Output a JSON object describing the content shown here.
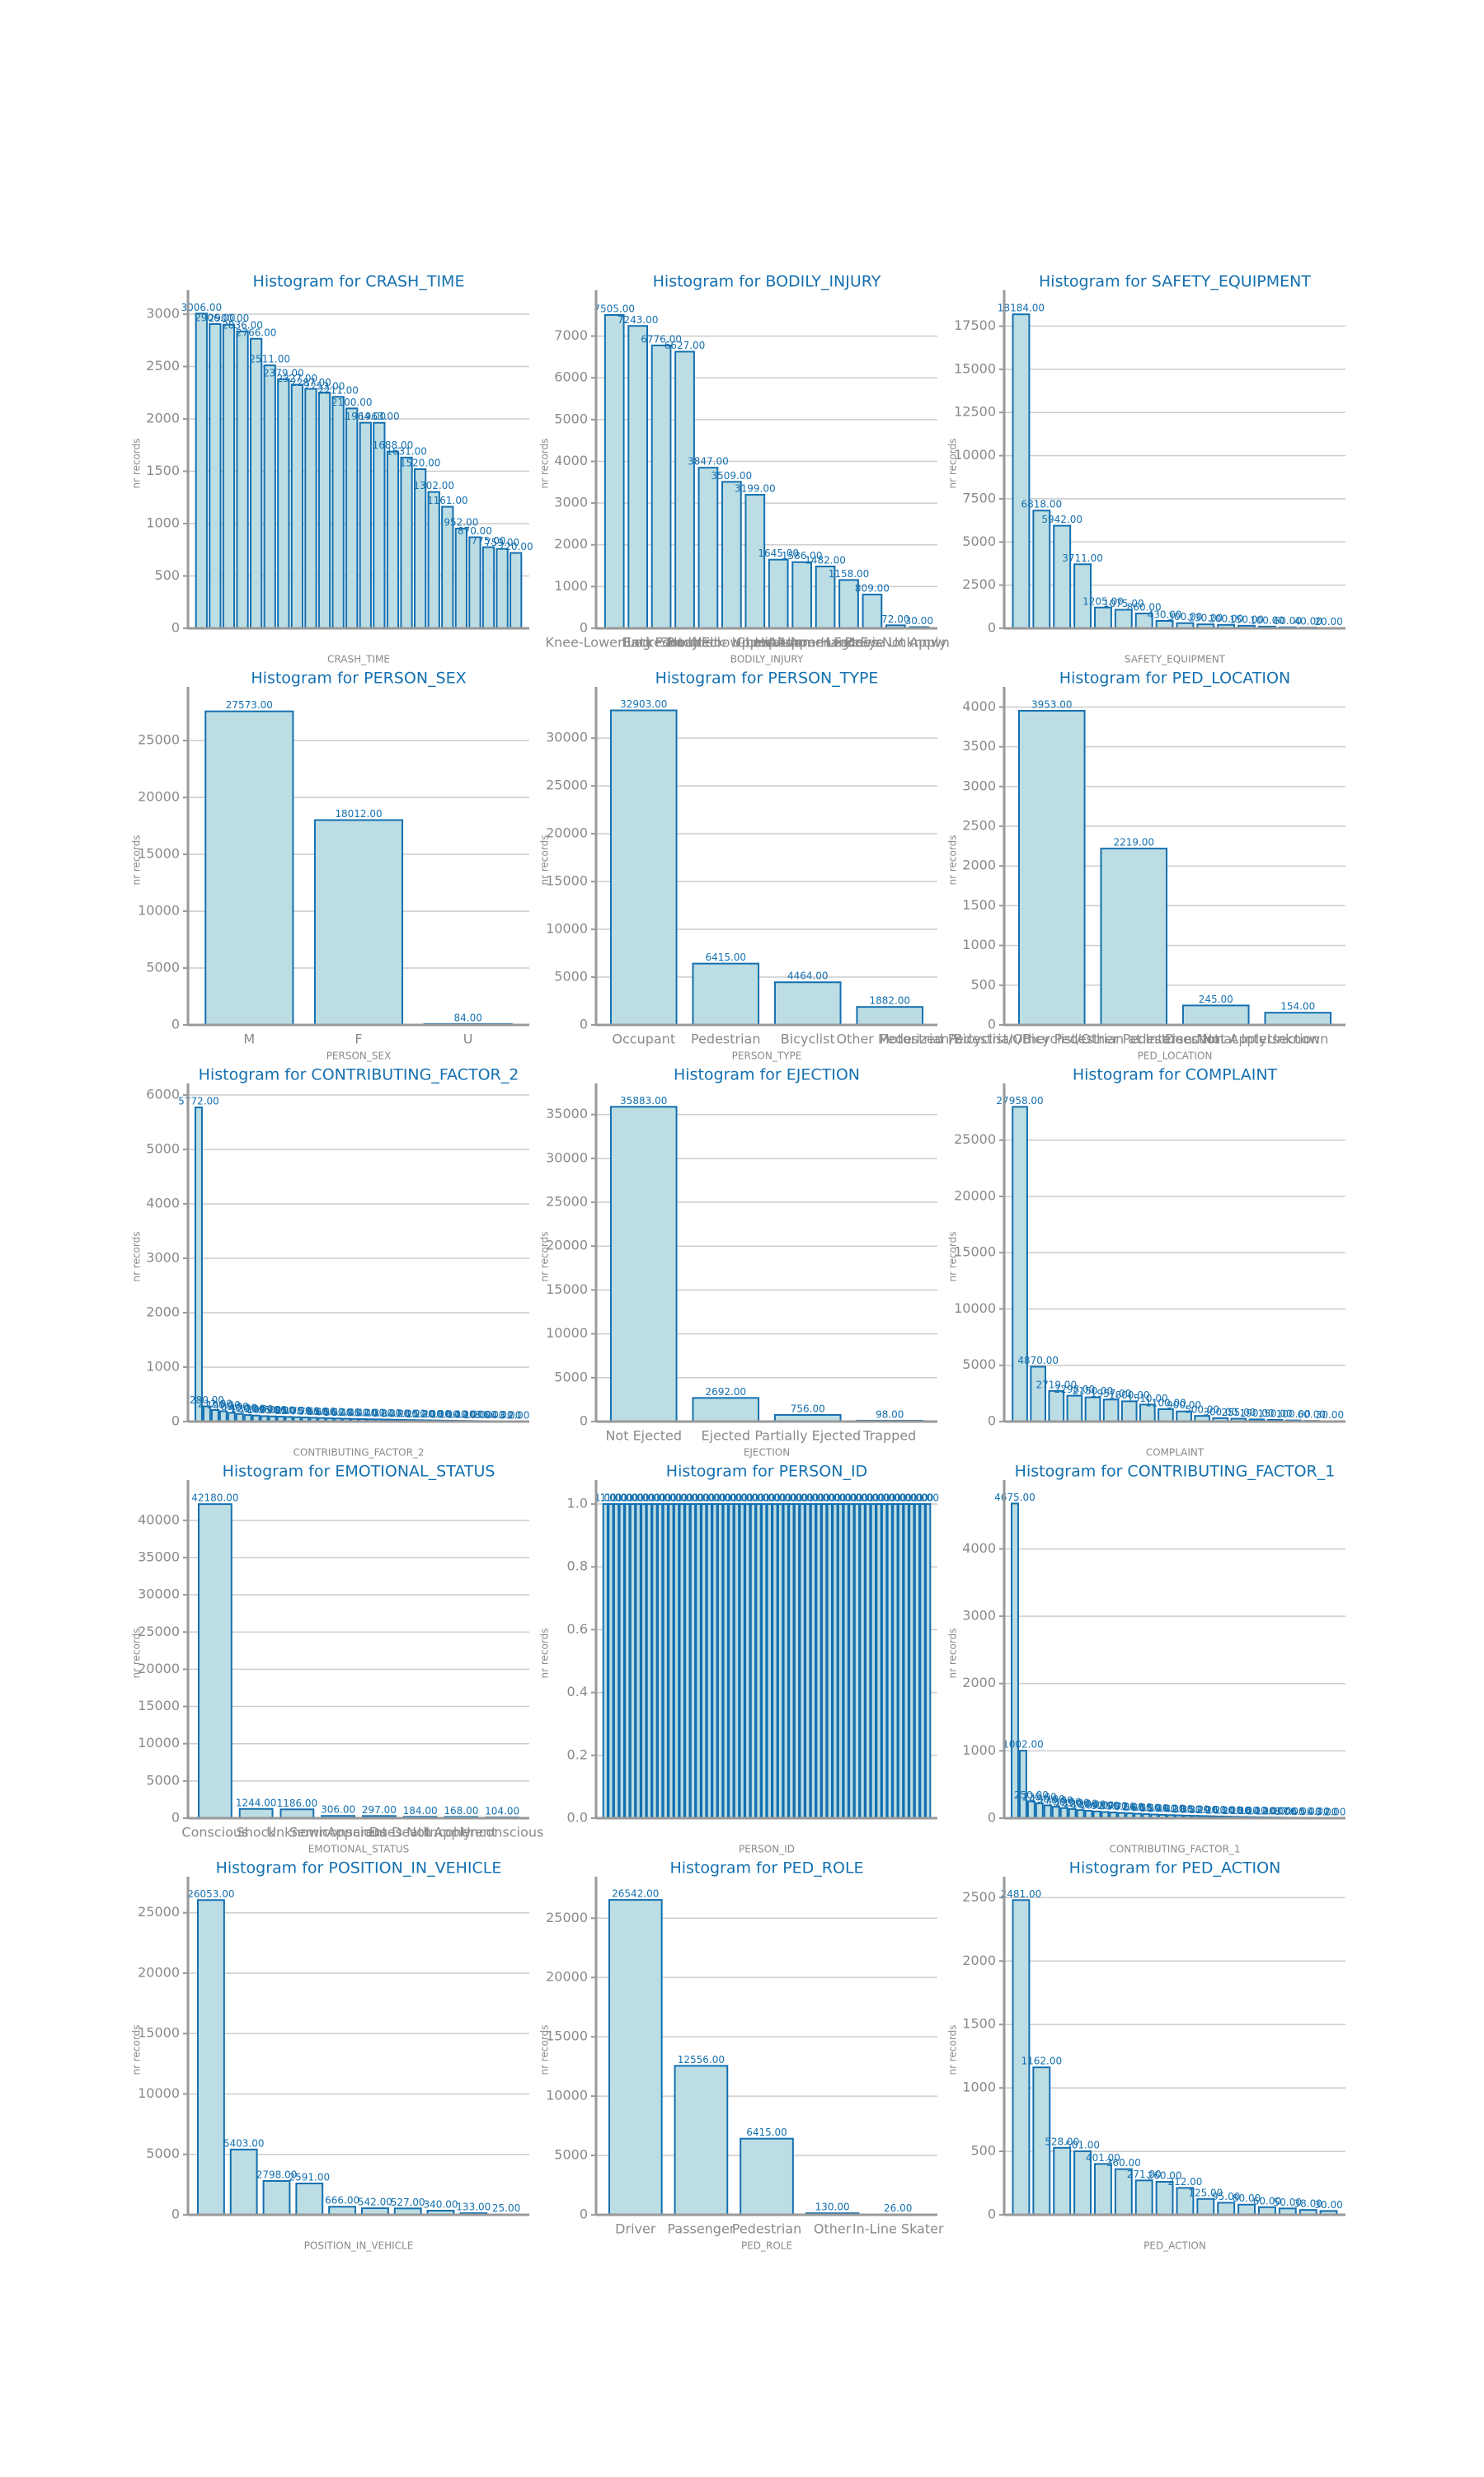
{
  "chart_data": [
    {
      "type": "bar",
      "title": "Histogram for CRASH_TIME",
      "xlabel": "CRASH_TIME",
      "ylabel": "nr records",
      "color": "#bcdde3",
      "edge_color": "#1470b0",
      "grid": true,
      "categories": [
        null,
        null,
        null,
        null,
        null,
        null,
        null,
        null,
        null,
        null,
        null,
        null,
        null,
        null,
        null,
        null,
        null,
        null,
        null,
        null,
        null,
        null,
        null,
        null
      ],
      "values": [
        3006,
        2906,
        2900,
        2836,
        2766,
        2511,
        2379,
        2327,
        2287,
        2253,
        2211,
        2100,
        1964,
        1963,
        1688,
        1631,
        1520,
        1302,
        1161,
        952,
        870,
        775,
        759,
        720
      ],
      "value_labels": [
        "3006.00",
        "2906.00",
        "2900.00",
        "2836.00",
        "2766.00",
        "2511.00",
        "2379.00",
        "2327.00",
        "2287.00",
        "2253.00",
        "2211.00",
        "2100.00",
        "1964.00",
        "1963.00",
        "1688.00",
        "1631.00",
        "1520.00",
        "1302.00",
        "1161.00",
        "952.00",
        "870.00",
        "775.00",
        "759.00",
        "720.00"
      ],
      "ylim": [
        0,
        3150
      ],
      "yticks": [
        0,
        500,
        1000,
        1500,
        2000,
        2500,
        3000
      ]
    },
    {
      "type": "bar",
      "title": "Histogram for BODILY_INJURY",
      "xlabel": "BODILY_INJURY",
      "ylabel": "nr records",
      "color": "#bcdde3",
      "edge_color": "#1470b0",
      "grid": true,
      "categories": [
        "Knee-Lower Leg Foot",
        "Back",
        "Entire Body",
        "Head",
        "Neck",
        "Shoulder - Upper Arm",
        "Chest",
        "Elbow-Lower-Arm-Hand",
        "Hip-Upper Leg",
        "Abdomen - Pelvis",
        "Face",
        "Eye",
        "Does Not Apply",
        "Unknown"
      ],
      "values": [
        7505,
        7243,
        6776,
        6627,
        3847,
        3509,
        3199,
        1645,
        1586,
        1482,
        1158,
        809,
        72,
        30
      ],
      "value_labels": [
        "7505.00",
        "7243.00",
        "6776.00",
        "6627.00",
        "3847.00",
        "3509.00",
        "3199.00",
        "1645.00",
        "1586.00",
        "1482.00",
        "1158.00",
        "809.00",
        "72.00",
        "30.00"
      ],
      "ylim": [
        0,
        7900
      ],
      "yticks": [
        0,
        1000,
        2000,
        3000,
        4000,
        5000,
        6000,
        7000
      ]
    },
    {
      "type": "bar",
      "title": "Histogram for SAFETY_EQUIPMENT",
      "xlabel": "SAFETY_EQUIPMENT",
      "ylabel": "nr records",
      "color": "#bcdde3",
      "edge_color": "#1470b0",
      "grid": true,
      "categories": [
        null,
        null,
        null,
        null,
        null,
        null,
        null,
        null,
        null,
        null,
        null,
        null,
        null,
        null,
        null,
        null
      ],
      "values": [
        18184,
        6818,
        5942,
        3711,
        1205,
        1075,
        860,
        430,
        300,
        230,
        200,
        150,
        100,
        60,
        40,
        20
      ],
      "value_labels": [
        "18184.00",
        "6818.00",
        "5942.00",
        "3711.00",
        "1205.00",
        "1075.00",
        "860.00",
        "430.00",
        "300.00",
        "230.00",
        "200.00",
        "150.00",
        "100.00",
        "60.00",
        "40.00",
        "20.00"
      ],
      "ylim": [
        0,
        19100
      ],
      "yticks": [
        0,
        2500,
        5000,
        7500,
        10000,
        12500,
        15000,
        17500
      ]
    },
    {
      "type": "bar",
      "title": "Histogram for PERSON_SEX",
      "xlabel": "PERSON_SEX",
      "ylabel": "nr records",
      "color": "#bcdde3",
      "edge_color": "#1470b0",
      "grid": true,
      "categories": [
        "M",
        "F",
        "U"
      ],
      "values": [
        27573,
        18012,
        84
      ],
      "value_labels": [
        "27573.00",
        "18012.00",
        "84.00"
      ],
      "ylim": [
        0,
        29000
      ],
      "yticks": [
        0,
        5000,
        10000,
        15000,
        20000,
        25000
      ]
    },
    {
      "type": "bar",
      "title": "Histogram for PERSON_TYPE",
      "xlabel": "PERSON_TYPE",
      "ylabel": "nr records",
      "color": "#bcdde3",
      "edge_color": "#1470b0",
      "grid": true,
      "categories": [
        "Occupant",
        "Pedestrian",
        "Bicyclist",
        "Other Motorized"
      ],
      "values": [
        32903,
        6415,
        4464,
        1882
      ],
      "value_labels": [
        "32903.00",
        "6415.00",
        "4464.00",
        "1882.00"
      ],
      "ylim": [
        0,
        34500
      ],
      "yticks": [
        0,
        5000,
        10000,
        15000,
        20000,
        25000,
        30000
      ]
    },
    {
      "type": "bar",
      "title": "Histogram for PED_LOCATION",
      "xlabel": "PED_LOCATION",
      "ylabel": "nr records",
      "color": "#bcdde3",
      "edge_color": "#1470b0",
      "grid": true,
      "categories": [
        "Pedestrian/Bicyclist/Other Pedestrian at Intersection",
        "Pedestrian/Bicyclist/Other Pedestrian Not at Intersection",
        "Does Not Apply",
        "Unknown"
      ],
      "values": [
        3953,
        2219,
        245,
        154
      ],
      "value_labels": [
        "3953.00",
        "2219.00",
        "245.00",
        "154.00"
      ],
      "ylim": [
        0,
        4150
      ],
      "yticks": [
        0,
        500,
        1000,
        1500,
        2000,
        2500,
        3000,
        3500,
        4000
      ]
    },
    {
      "type": "bar",
      "title": "Histogram for CONTRIBUTING_FACTOR_2",
      "xlabel": "CONTRIBUTING_FACTOR_2",
      "ylabel": "nr records",
      "color": "#bcdde3",
      "edge_color": "#1470b0",
      "grid": true,
      "categories": [
        null,
        null,
        null,
        null,
        null,
        null,
        null,
        null,
        null,
        null,
        null,
        null,
        null,
        null,
        null,
        null,
        null,
        null,
        null,
        null,
        null,
        null,
        null,
        null,
        null,
        null,
        null,
        null,
        null,
        null,
        null,
        null,
        null,
        null,
        null,
        null,
        null,
        null,
        null,
        null
      ],
      "values": [
        5772,
        280,
        212,
        190,
        160,
        140,
        120,
        110,
        100,
        95,
        90,
        85,
        80,
        75,
        70,
        65,
        60,
        56,
        52,
        48,
        45,
        42,
        40,
        37,
        34,
        31,
        28,
        25,
        22,
        20,
        18,
        16,
        14,
        12,
        10,
        8,
        6,
        4,
        3,
        2
      ],
      "value_labels": [
        "5772.00",
        "280.00",
        "212.00",
        "190.00",
        "160.00",
        "140.00",
        "120.00",
        "110.00",
        "100.00",
        "95.00",
        "90.00",
        "85.00",
        "80.00",
        "75.00",
        "70.00",
        "65.00",
        "60.00",
        "56.00",
        "52.00",
        "48.00",
        "45.00",
        "42.00",
        "40.00",
        "37.00",
        "34.00",
        "31.00",
        "28.00",
        "25.00",
        "22.00",
        "20.00",
        "18.00",
        "16.00",
        "14.00",
        "12.00",
        "10.00",
        "8.00",
        "6.00",
        "4.00",
        "3.00",
        "2.00"
      ],
      "ylim": [
        0,
        6060
      ],
      "yticks": [
        0,
        1000,
        2000,
        3000,
        4000,
        5000,
        6000
      ]
    },
    {
      "type": "bar",
      "title": "Histogram for EJECTION",
      "xlabel": "EJECTION",
      "ylabel": "nr records",
      "color": "#bcdde3",
      "edge_color": "#1470b0",
      "grid": true,
      "categories": [
        "Not Ejected",
        "Ejected",
        "Partially Ejected",
        "Trapped"
      ],
      "values": [
        35883,
        2692,
        756,
        98
      ],
      "value_labels": [
        "35883.00",
        "2692.00",
        "756.00",
        "98.00"
      ],
      "ylim": [
        0,
        37600
      ],
      "yticks": [
        0,
        5000,
        10000,
        15000,
        20000,
        25000,
        30000,
        35000
      ]
    },
    {
      "type": "bar",
      "title": "Histogram for COMPLAINT",
      "xlabel": "COMPLAINT",
      "ylabel": "nr records",
      "color": "#bcdde3",
      "edge_color": "#1470b0",
      "grid": true,
      "categories": [
        null,
        null,
        null,
        null,
        null,
        null,
        null,
        null,
        null,
        null,
        null,
        null,
        null,
        null,
        null,
        null,
        null,
        null
      ],
      "values": [
        27958,
        4870,
        2719,
        2298,
        2150,
        1957,
        1800,
        1510,
        1100,
        900,
        500,
        300,
        255,
        190,
        150,
        100,
        60,
        30
      ],
      "value_labels": [
        "27958.00",
        "4870.00",
        "2719.00",
        "2298.00",
        "2150.00",
        "1957.00",
        "1800.00",
        "1510.00",
        "1100.00",
        "900.00",
        "500.00",
        "300.00",
        "255.00",
        "190.00",
        "150.00",
        "100.00",
        "60.00",
        "30.00"
      ],
      "ylim": [
        0,
        29300
      ],
      "yticks": [
        0,
        5000,
        10000,
        15000,
        20000,
        25000
      ]
    },
    {
      "type": "bar",
      "title": "Histogram for EMOTIONAL_STATUS",
      "xlabel": "EMOTIONAL_STATUS",
      "ylabel": "nr records",
      "color": "#bcdde3",
      "edge_color": "#1470b0",
      "grid": true,
      "categories": [
        "Conscious",
        "Shock",
        "Unknown",
        "Semiconscious",
        "Apparent Death",
        "Does Not Apply",
        "Incoherent",
        "Unconscious"
      ],
      "values": [
        42180,
        1244,
        1186,
        306,
        297,
        184,
        168,
        104
      ],
      "value_labels": [
        "42180.00",
        "1244.00",
        "1186.00",
        "306.00",
        "297.00",
        "184.00",
        "168.00",
        "104.00"
      ],
      "ylim": [
        0,
        44300
      ],
      "yticks": [
        0,
        5000,
        10000,
        15000,
        20000,
        25000,
        30000,
        35000,
        40000
      ]
    },
    {
      "type": "bar",
      "title": "Histogram for PERSON_ID",
      "xlabel": "PERSON_ID",
      "ylabel": "nr records",
      "color": "#bcdde3",
      "edge_color": "#1470b0",
      "grid": true,
      "categories": [
        null,
        null,
        null,
        null,
        null,
        null,
        null,
        null,
        null,
        null,
        null,
        null,
        null,
        null,
        null,
        null,
        null,
        null,
        null,
        null,
        null,
        null,
        null,
        null,
        null,
        null,
        null,
        null,
        null,
        null,
        null,
        null,
        null,
        null,
        null,
        null,
        null,
        null,
        null,
        null,
        null,
        null,
        null,
        null,
        null,
        null,
        null,
        null,
        null,
        null,
        null,
        null,
        null,
        null,
        null,
        null,
        null,
        null,
        null,
        null
      ],
      "values": [
        1,
        1,
        1,
        1,
        1,
        1,
        1,
        1,
        1,
        1,
        1,
        1,
        1,
        1,
        1,
        1,
        1,
        1,
        1,
        1,
        1,
        1,
        1,
        1,
        1,
        1,
        1,
        1,
        1,
        1,
        1,
        1,
        1,
        1,
        1,
        1,
        1,
        1,
        1,
        1,
        1,
        1,
        1,
        1,
        1,
        1,
        1,
        1,
        1,
        1,
        1,
        1,
        1,
        1,
        1,
        1,
        1,
        1,
        1,
        1
      ],
      "value_labels": [
        "1.00",
        "1.00",
        "1.00",
        "1.00",
        "1.00",
        "1.00",
        "1.00",
        "1.00",
        "1.00",
        "1.00",
        "1.00",
        "1.00",
        "1.00",
        "1.00",
        "1.00",
        "1.00",
        "1.00",
        "1.00",
        "1.00",
        "1.00",
        "1.00",
        "1.00",
        "1.00",
        "1.00",
        "1.00",
        "1.00",
        "1.00",
        "1.00",
        "1.00",
        "1.00",
        "1.00",
        "1.00",
        "1.00",
        "1.00",
        "1.00",
        "1.00",
        "1.00",
        "1.00",
        "1.00",
        "1.00",
        "1.00",
        "1.00",
        "1.00",
        "1.00",
        "1.00",
        "1.00",
        "1.00",
        "1.00",
        "1.00",
        "1.00",
        "1.00",
        "1.00",
        "1.00",
        "1.00",
        "1.00",
        "1.00",
        "1.00",
        "1.00",
        "1.00",
        "1.00"
      ],
      "ylim": [
        0,
        1.05
      ],
      "yticks": [
        {
          "value": 0,
          "label": "0.0"
        },
        {
          "value": 0.2,
          "label": "0.2"
        },
        {
          "value": 0.4,
          "label": "0.4"
        },
        {
          "value": 0.6,
          "label": "0.6"
        },
        {
          "value": 0.8,
          "label": "0.8"
        },
        {
          "value": 1,
          "label": "1.0"
        }
      ]
    },
    {
      "type": "bar",
      "title": "Histogram for CONTRIBUTING_FACTOR_1",
      "xlabel": "CONTRIBUTING_FACTOR_1",
      "ylabel": "nr records",
      "color": "#bcdde3",
      "edge_color": "#1470b0",
      "grid": true,
      "categories": [
        null,
        null,
        null,
        null,
        null,
        null,
        null,
        null,
        null,
        null,
        null,
        null,
        null,
        null,
        null,
        null,
        null,
        null,
        null,
        null,
        null,
        null,
        null,
        null,
        null,
        null,
        null,
        null,
        null,
        null,
        null,
        null,
        null,
        null,
        null,
        null,
        null,
        null,
        null,
        null
      ],
      "values": [
        4675,
        1002,
        250,
        220,
        190,
        170,
        150,
        135,
        120,
        110,
        100,
        92,
        85,
        78,
        72,
        66,
        60,
        55,
        50,
        46,
        42,
        38,
        35,
        32,
        29,
        26,
        23,
        20,
        18,
        16,
        14,
        12,
        10,
        8,
        7,
        6,
        5,
        4,
        3,
        2
      ],
      "value_labels": [
        "4675.00",
        "1002.00",
        "250.00",
        "220.00",
        "190.00",
        "170.00",
        "150.00",
        "135.00",
        "120.00",
        "110.00",
        "100.00",
        "92.00",
        "85.00",
        "78.00",
        "72.00",
        "66.00",
        "60.00",
        "55.00",
        "50.00",
        "46.00",
        "42.00",
        "38.00",
        "35.00",
        "32.00",
        "29.00",
        "26.00",
        "23.00",
        "20.00",
        "18.00",
        "16.00",
        "14.00",
        "12.00",
        "10.00",
        "8.00",
        "7.00",
        "6.00",
        "5.00",
        "4.00",
        "3.00",
        "2.00"
      ],
      "ylim": [
        0,
        4900
      ],
      "yticks": [
        0,
        1000,
        2000,
        3000,
        4000
      ]
    },
    {
      "type": "bar",
      "title": "Histogram for POSITION_IN_VEHICLE",
      "xlabel": "POSITION_IN_VEHICLE",
      "ylabel": "nr records",
      "color": "#bcdde3",
      "edge_color": "#1470b0",
      "grid": true,
      "categories": [
        null,
        null,
        null,
        null,
        null,
        null,
        null,
        null,
        null,
        null
      ],
      "values": [
        26053,
        5403,
        2798,
        2591,
        666,
        542,
        527,
        340,
        133,
        25
      ],
      "value_labels": [
        "26053.00",
        "5403.00",
        "2798.00",
        "2591.00",
        "666.00",
        "542.00",
        "527.00",
        "340.00",
        "133.00",
        "25.00"
      ],
      "ylim": [
        0,
        27300
      ],
      "yticks": [
        0,
        5000,
        10000,
        15000,
        20000,
        25000
      ]
    },
    {
      "type": "bar",
      "title": "Histogram for PED_ROLE",
      "xlabel": "PED_ROLE",
      "ylabel": "nr records",
      "color": "#bcdde3",
      "edge_color": "#1470b0",
      "grid": true,
      "categories": [
        "Driver",
        "Passenger",
        "Pedestrian",
        "Other",
        "In-Line Skater"
      ],
      "values": [
        26542,
        12556,
        6415,
        130,
        26
      ],
      "value_labels": [
        "26542.00",
        "12556.00",
        "6415.00",
        "130.00",
        "26.00"
      ],
      "ylim": [
        0,
        27800
      ],
      "yticks": [
        0,
        5000,
        10000,
        15000,
        20000,
        25000
      ]
    },
    {
      "type": "bar",
      "title": "Histogram for PED_ACTION",
      "xlabel": "PED_ACTION",
      "ylabel": "nr records",
      "color": "#bcdde3",
      "edge_color": "#1470b0",
      "grid": true,
      "categories": [
        null,
        null,
        null,
        null,
        null,
        null,
        null,
        null,
        null,
        null,
        null,
        null,
        null,
        null,
        null,
        null
      ],
      "values": [
        2481,
        1162,
        528,
        501,
        401,
        360,
        271,
        260,
        212,
        125,
        95,
        80,
        60,
        50,
        38,
        30
      ],
      "value_labels": [
        "2481.00",
        "1162.00",
        "528.00",
        "501.00",
        "401.00",
        "360.00",
        "271.00",
        "260.00",
        "212.00",
        "125.00",
        "95.00",
        "80.00",
        "60.00",
        "50.00",
        "38.00",
        "30.00"
      ],
      "ylim": [
        0,
        2600
      ],
      "yticks": [
        0,
        500,
        1000,
        1500,
        2000,
        2500
      ]
    }
  ]
}
